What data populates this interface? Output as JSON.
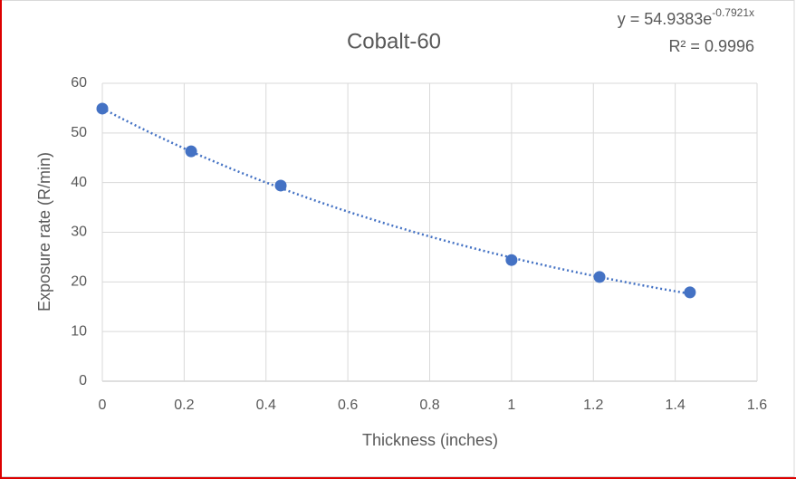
{
  "chart_data": {
    "type": "scatter",
    "title": "Cobalt-60",
    "x_label": "Thickness (inches)",
    "y_label": "Exposure rate (R/min)",
    "series": [
      {
        "name": "Cobalt-60",
        "color": "#4472c4",
        "x": [
          0,
          0.217,
          0.436,
          1.0,
          1.215,
          1.436
        ],
        "values": [
          54.9,
          46.3,
          39.4,
          24.4,
          21.0,
          17.9
        ]
      }
    ],
    "trendline": {
      "type": "exponential",
      "a": 54.9383,
      "b": -0.7921,
      "color": "#4472c4",
      "equation": "y = 54.9383e",
      "exponent": "-0.7921x",
      "r_squared": "R² = 0.9996"
    },
    "xlim": [
      0,
      1.6
    ],
    "xticks": [
      0,
      0.2,
      0.4,
      0.6,
      0.8,
      1,
      1.2,
      1.4,
      1.6
    ],
    "ylim": [
      0,
      60
    ],
    "yticks": [
      0,
      10,
      20,
      30,
      40,
      50,
      60
    ],
    "grid": true
  }
}
